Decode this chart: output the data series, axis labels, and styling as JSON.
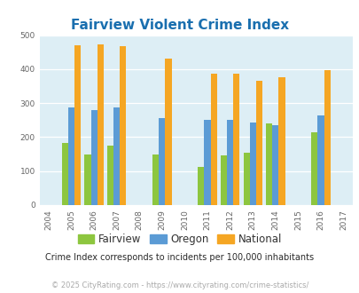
{
  "title": "Fairview Violent Crime Index",
  "subtitle": "Crime Index corresponds to incidents per 100,000 inhabitants",
  "footer": "© 2025 CityRating.com - https://www.cityrating.com/crime-statistics/",
  "years": [
    2005,
    2006,
    2007,
    2009,
    2011,
    2012,
    2013,
    2014,
    2016
  ],
  "fairview": [
    183,
    150,
    175,
    150,
    112,
    145,
    153,
    240,
    213
  ],
  "oregon": [
    288,
    280,
    288,
    257,
    250,
    250,
    244,
    234,
    263
  ],
  "national": [
    469,
    473,
    467,
    432,
    387,
    387,
    367,
    376,
    397
  ],
  "color_fairview": "#8dc63f",
  "color_oregon": "#5b9bd5",
  "color_national": "#f5a623",
  "bg_color": "#ddeef5",
  "ylim": [
    0,
    500
  ],
  "yticks": [
    0,
    100,
    200,
    300,
    400,
    500
  ],
  "xtick_years": [
    2004,
    2005,
    2006,
    2007,
    2008,
    2009,
    2010,
    2011,
    2012,
    2013,
    2014,
    2015,
    2016,
    2017
  ],
  "title_color": "#1a6faf",
  "subtitle_color": "#2a2a2a",
  "footer_color": "#aaaaaa",
  "bar_width": 0.28
}
